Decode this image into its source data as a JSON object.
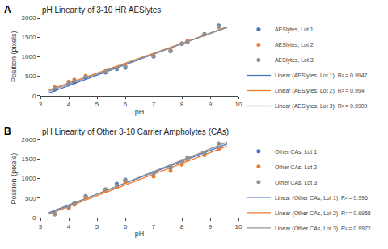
{
  "chart_data": [
    {
      "type": "scatter",
      "title": "pH Linearity of 3-10 HR AESlytes",
      "annotations": [
        "A"
      ],
      "x_label": "pH",
      "y_label": "Position (pixels)",
      "xlim": [
        3,
        10
      ],
      "ylim": [
        0,
        2000
      ],
      "xticks": [
        3,
        4,
        5,
        6,
        7,
        8,
        9,
        10
      ],
      "yticks": [
        0,
        500,
        1000,
        1500,
        2000
      ],
      "grid": false,
      "legend": "right",
      "series": [
        {
          "name": "AESlytes, Lot 1",
          "type": "scatter",
          "color": "#4472C4",
          "x": [
            3.5,
            4.0,
            4.2,
            4.6,
            5.3,
            5.7,
            6.0,
            7.0,
            7.6,
            8.0,
            8.2,
            8.8,
            9.3
          ],
          "values": [
            155,
            290,
            345,
            465,
            595,
            680,
            720,
            1000,
            1140,
            1330,
            1385,
            1580,
            1800
          ]
        },
        {
          "name": "AESlytes, Lot 2",
          "type": "scatter",
          "color": "#ED7D31",
          "x": [
            3.5,
            4.0,
            4.2,
            4.6,
            5.3,
            5.7,
            6.0,
            7.0,
            7.6,
            8.0,
            8.2,
            8.8,
            9.3
          ],
          "values": [
            220,
            360,
            415,
            510,
            630,
            710,
            760,
            1030,
            1175,
            1345,
            1400,
            1565,
            1760
          ]
        },
        {
          "name": "AESlytes, Lot 3",
          "type": "scatter",
          "color": "#929292",
          "x": [
            3.5,
            4.0,
            4.2,
            4.6,
            5.3,
            5.7,
            6.0,
            7.0,
            7.6,
            8.0,
            8.2,
            8.8,
            9.3
          ],
          "values": [
            195,
            330,
            385,
            490,
            615,
            695,
            740,
            1015,
            1155,
            1335,
            1390,
            1570,
            1770
          ]
        },
        {
          "name": "Linear (AESlytes, Lot 1)  R² = 0.9947",
          "type": "line",
          "color": "#4472C4",
          "x": [
            3.3,
            9.6
          ],
          "values": [
            70.03,
            1765.2
          ]
        },
        {
          "name": "Linear (AESlytes, Lot 2)  R² = 0.994",
          "type": "line",
          "color": "#ED7D31",
          "x": [
            3.3,
            9.6
          ],
          "values": [
            145.14,
            1747.11
          ]
        },
        {
          "name": "Linear (AESlytes, Lot 3)  R² = 0.9909",
          "type": "line",
          "color": "#929292",
          "x": [
            3.3,
            9.6
          ],
          "values": [
            114.26,
            1749.31
          ]
        }
      ]
    },
    {
      "type": "scatter",
      "title": "pH Linearity of Other 3-10 Carrier Ampholytes (CAs)",
      "annotations": [
        "B"
      ],
      "x_label": "pH",
      "y_label": "Position (pixels)",
      "xlim": [
        3,
        10
      ],
      "ylim": [
        0,
        2000
      ],
      "xticks": [
        3,
        4,
        5,
        6,
        7,
        8,
        9,
        10
      ],
      "yticks": [
        0,
        500,
        1000,
        1500,
        2000
      ],
      "grid": false,
      "legend": "right",
      "series": [
        {
          "name": "Other CAs, Lot 1",
          "type": "scatter",
          "color": "#4472C4",
          "x": [
            3.5,
            4.0,
            4.2,
            4.6,
            5.3,
            5.7,
            6.0,
            7.0,
            7.6,
            8.0,
            8.2,
            8.8,
            9.3
          ],
          "values": [
            100,
            275,
            365,
            555,
            720,
            870,
            970,
            1145,
            1270,
            1440,
            1515,
            1650,
            1780
          ]
        },
        {
          "name": "Other CAs, Lot 2",
          "type": "scatter",
          "color": "#ED7D31",
          "x": [
            3.5,
            4.0,
            4.2,
            4.6,
            5.3,
            5.7,
            6.0,
            7.0,
            7.6,
            8.0,
            8.2,
            8.8,
            9.3
          ],
          "values": [
            80,
            240,
            330,
            520,
            685,
            775,
            920,
            1055,
            1200,
            1360,
            1490,
            1600,
            1760
          ]
        },
        {
          "name": "Other CAs, Lot 3",
          "type": "scatter",
          "color": "#929292",
          "x": [
            3.5,
            4.0,
            4.2,
            4.6,
            5.3,
            5.7,
            6.0,
            7.0,
            7.6,
            8.0,
            8.2,
            8.8,
            9.3
          ],
          "values": [
            95,
            265,
            375,
            555,
            730,
            830,
            960,
            1130,
            1290,
            1455,
            1545,
            1660,
            1900
          ]
        },
        {
          "name": "Linear (Other CAs, Lot 1)  R² = 0.996",
          "type": "line",
          "color": "#4472C4",
          "x": [
            3.3,
            9.6
          ],
          "values": [
            128.87,
            1888.97
          ]
        },
        {
          "name": "Linear (Other CAs, Lot 2)  R² = 0.9958",
          "type": "line",
          "color": "#ED7D31",
          "x": [
            3.3,
            9.6
          ],
          "values": [
            88.31,
            1830.35
          ]
        },
        {
          "name": "Linear (Other CAs, Lot 3)  R² = 0.9972",
          "type": "line",
          "color": "#929292",
          "x": [
            3.3,
            9.6
          ],
          "values": [
            105.41,
            1936.05
          ]
        }
      ]
    }
  ]
}
